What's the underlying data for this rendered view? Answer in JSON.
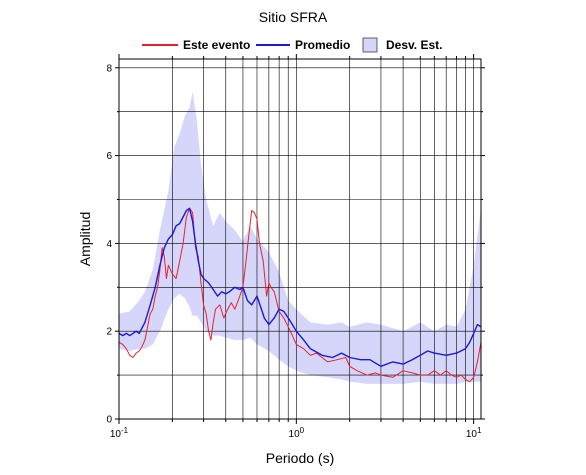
{
  "chart_data": {
    "type": "line",
    "title": "Sitio SFRA",
    "xlabel": "Periodo (s)",
    "ylabel": "Amplitud",
    "x_scale": "log",
    "xlim": [
      0.1,
      11
    ],
    "ylim": [
      0,
      8.2
    ],
    "x_ticks": [
      {
        "value": 0.1,
        "base": "10",
        "exp": "-1"
      },
      {
        "value": 1,
        "base": "10",
        "exp": "0"
      },
      {
        "value": 10,
        "base": "10",
        "exp": "1"
      }
    ],
    "y_ticks": [
      {
        "value": 0,
        "label": "0"
      },
      {
        "value": 2,
        "label": "2"
      },
      {
        "value": 4,
        "label": "4"
      },
      {
        "value": 6,
        "label": "6"
      },
      {
        "value": 8,
        "label": "8"
      }
    ],
    "grid": true,
    "legend_position": "top",
    "legend": [
      {
        "label": "Este evento",
        "kind": "line",
        "color": "#e8212a"
      },
      {
        "label": "Promedio",
        "kind": "line",
        "color": "#1a1ad6"
      },
      {
        "label": "Desv. Est.",
        "kind": "band",
        "color": "#d6d6fa"
      }
    ],
    "band": {
      "name": "Desv. Est.",
      "color": "#d6d6fa",
      "x": [
        0.1,
        0.115,
        0.13,
        0.14,
        0.155,
        0.17,
        0.19,
        0.205,
        0.22,
        0.235,
        0.25,
        0.26,
        0.275,
        0.29,
        0.31,
        0.34,
        0.37,
        0.4,
        0.45,
        0.5,
        0.55,
        0.6,
        0.7,
        0.8,
        0.9,
        1.0,
        1.2,
        1.5,
        1.8,
        2.0,
        2.5,
        3.0,
        4.0,
        5.0,
        6.0,
        7.0,
        8.0,
        9.0,
        10.0,
        11.0
      ],
      "upper": [
        2.4,
        2.45,
        2.7,
        2.9,
        3.4,
        4.3,
        5.2,
        6.2,
        6.5,
        6.9,
        7.1,
        7.45,
        6.8,
        5.8,
        5.0,
        4.4,
        4.7,
        4.5,
        4.3,
        4.05,
        4.4,
        4.1,
        3.8,
        3.35,
        2.7,
        2.5,
        2.2,
        2.15,
        2.2,
        2.1,
        2.2,
        2.15,
        2.0,
        2.2,
        2.0,
        2.15,
        2.1,
        2.5,
        3.5,
        4.8
      ],
      "lower": [
        1.6,
        1.55,
        1.6,
        1.6,
        1.7,
        2.0,
        2.5,
        2.75,
        2.85,
        2.75,
        2.55,
        2.35,
        2.35,
        2.2,
        2.0,
        1.9,
        1.9,
        1.85,
        1.8,
        1.8,
        1.85,
        1.7,
        1.55,
        1.35,
        1.2,
        1.1,
        1.0,
        0.95,
        0.9,
        0.85,
        0.8,
        0.8,
        0.8,
        0.85,
        0.8,
        0.8,
        0.8,
        0.85,
        0.85,
        0.85
      ]
    },
    "series": [
      {
        "name": "Este evento",
        "color": "#e8212a",
        "x": [
          0.1,
          0.105,
          0.11,
          0.115,
          0.12,
          0.125,
          0.13,
          0.135,
          0.14,
          0.145,
          0.15,
          0.155,
          0.16,
          0.165,
          0.17,
          0.175,
          0.18,
          0.185,
          0.19,
          0.2,
          0.21,
          0.22,
          0.23,
          0.24,
          0.25,
          0.26,
          0.27,
          0.28,
          0.29,
          0.3,
          0.31,
          0.32,
          0.33,
          0.34,
          0.35,
          0.37,
          0.39,
          0.41,
          0.43,
          0.45,
          0.47,
          0.5,
          0.52,
          0.54,
          0.56,
          0.58,
          0.6,
          0.62,
          0.65,
          0.68,
          0.7,
          0.72,
          0.75,
          0.8,
          0.85,
          0.9,
          0.95,
          1.0,
          1.1,
          1.2,
          1.3,
          1.5,
          1.7,
          1.9,
          2.0,
          2.2,
          2.5,
          2.8,
          3.0,
          3.5,
          4.0,
          4.5,
          5.0,
          5.5,
          6.0,
          6.5,
          7.0,
          7.5,
          8.0,
          8.5,
          9.0,
          9.5,
          10.0,
          10.5,
          11.0
        ],
        "y": [
          1.75,
          1.7,
          1.6,
          1.45,
          1.4,
          1.5,
          1.55,
          1.65,
          1.8,
          2.1,
          2.4,
          2.5,
          2.8,
          3.0,
          3.4,
          3.9,
          3.7,
          3.2,
          3.5,
          3.3,
          3.2,
          3.6,
          4.0,
          4.6,
          4.8,
          4.7,
          3.9,
          3.7,
          3.1,
          2.6,
          2.4,
          2.0,
          1.8,
          2.2,
          2.5,
          2.6,
          2.3,
          2.5,
          2.65,
          2.5,
          2.7,
          3.0,
          3.6,
          4.2,
          4.75,
          4.7,
          4.55,
          4.0,
          3.6,
          2.8,
          3.1,
          3.0,
          2.9,
          2.45,
          2.3,
          2.1,
          1.9,
          1.7,
          1.6,
          1.45,
          1.5,
          1.3,
          1.35,
          1.4,
          1.2,
          1.1,
          1.0,
          1.05,
          1.0,
          0.95,
          1.1,
          1.05,
          1.0,
          1.0,
          1.1,
          1.0,
          1.1,
          1.0,
          0.95,
          1.0,
          0.9,
          0.85,
          0.95,
          1.3,
          1.75
        ]
      },
      {
        "name": "Promedio",
        "color": "#1a1ad6",
        "x": [
          0.1,
          0.105,
          0.11,
          0.115,
          0.12,
          0.125,
          0.13,
          0.14,
          0.15,
          0.16,
          0.17,
          0.18,
          0.19,
          0.2,
          0.21,
          0.22,
          0.23,
          0.24,
          0.25,
          0.26,
          0.27,
          0.28,
          0.29,
          0.3,
          0.32,
          0.34,
          0.36,
          0.38,
          0.4,
          0.42,
          0.45,
          0.48,
          0.5,
          0.53,
          0.56,
          0.6,
          0.63,
          0.66,
          0.7,
          0.75,
          0.8,
          0.85,
          0.9,
          0.95,
          1.0,
          1.1,
          1.2,
          1.4,
          1.6,
          1.8,
          2.0,
          2.3,
          2.6,
          3.0,
          3.5,
          4.0,
          4.5,
          5.0,
          5.5,
          6.0,
          7.0,
          8.0,
          9.0,
          9.5,
          10.0,
          10.5,
          11.0
        ],
        "y": [
          1.95,
          1.9,
          1.95,
          1.9,
          1.95,
          2.0,
          1.95,
          2.2,
          2.6,
          3.0,
          3.5,
          3.9,
          4.1,
          4.2,
          4.4,
          4.45,
          4.6,
          4.75,
          4.8,
          4.5,
          4.0,
          3.6,
          3.3,
          3.2,
          3.1,
          2.95,
          2.8,
          2.9,
          2.85,
          2.9,
          3.0,
          2.95,
          3.0,
          2.7,
          2.6,
          2.8,
          2.55,
          2.3,
          2.15,
          2.3,
          2.5,
          2.45,
          2.3,
          2.15,
          2.0,
          1.8,
          1.6,
          1.45,
          1.4,
          1.5,
          1.4,
          1.35,
          1.35,
          1.2,
          1.3,
          1.25,
          1.35,
          1.45,
          1.55,
          1.5,
          1.45,
          1.5,
          1.6,
          1.75,
          1.95,
          2.15,
          2.1
        ]
      }
    ]
  }
}
